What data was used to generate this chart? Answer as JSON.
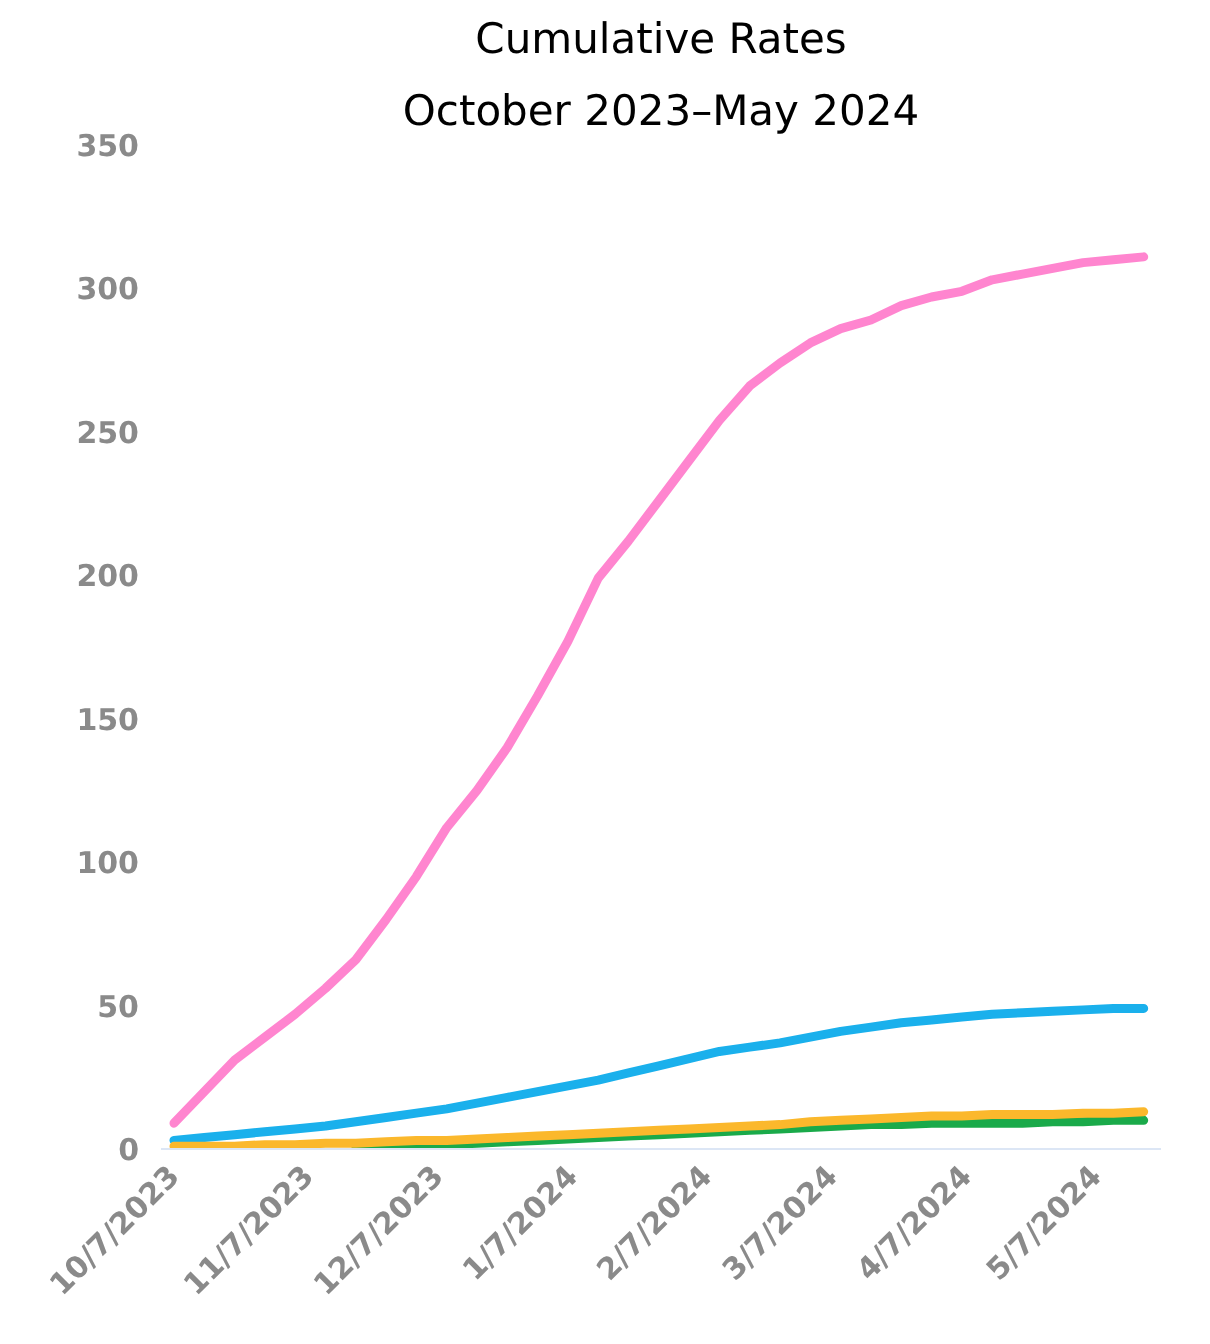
{
  "chart_data": {
    "type": "line",
    "title": "Cumulative Rates",
    "subtitle": "October 2023–May 2024",
    "x": [
      "2023-10-07",
      "2023-10-14",
      "2023-10-21",
      "2023-10-28",
      "2023-11-04",
      "2023-11-11",
      "2023-11-18",
      "2023-11-25",
      "2023-12-02",
      "2023-12-09",
      "2023-12-16",
      "2023-12-23",
      "2023-12-30",
      "2024-01-06",
      "2024-01-13",
      "2024-01-20",
      "2024-01-27",
      "2024-02-03",
      "2024-02-10",
      "2024-02-17",
      "2024-02-24",
      "2024-03-02",
      "2024-03-09",
      "2024-03-16",
      "2024-03-23",
      "2024-03-30",
      "2024-04-06",
      "2024-04-13",
      "2024-04-20",
      "2024-04-27",
      "2024-05-04",
      "2024-05-11",
      "2024-05-18"
    ],
    "series": [
      {
        "color": "#ff85cf",
        "values": [
          9,
          20,
          31,
          39,
          47,
          56,
          66,
          80,
          95,
          112,
          125,
          140,
          158,
          177,
          199,
          212,
          226,
          240,
          254,
          266,
          274,
          281,
          286,
          289,
          294,
          297,
          299,
          303,
          305,
          307,
          309,
          310,
          311
        ]
      },
      {
        "color": "#1ab0ec",
        "values": [
          3,
          4,
          5,
          6,
          7,
          8,
          9.5,
          11,
          12.5,
          14,
          16,
          18,
          20,
          22,
          24,
          26.5,
          29,
          31.5,
          34,
          35.5,
          37,
          39,
          41,
          42.5,
          44,
          45,
          46,
          47,
          47.5,
          48,
          48.5,
          49,
          49
        ]
      },
      {
        "color": "#1aaa4a",
        "values": [
          null,
          null,
          null,
          null,
          null,
          null,
          1,
          1,
          1.5,
          1.5,
          2,
          2.5,
          3,
          3.5,
          4,
          4.5,
          5,
          5.5,
          6,
          6.5,
          7,
          7.5,
          8,
          8.5,
          8.5,
          9,
          9,
          9,
          9,
          9.5,
          9.5,
          10,
          10
        ]
      },
      {
        "color": "#fbb82c",
        "values": [
          1,
          1,
          1,
          1.5,
          1.5,
          2,
          2,
          2.5,
          3,
          3,
          3.5,
          4,
          4.5,
          5,
          5.5,
          6,
          6.5,
          7,
          7.5,
          8,
          8.5,
          9.5,
          10,
          10.5,
          11,
          11.5,
          11.5,
          12,
          12,
          12,
          12.5,
          12.5,
          13
        ]
      }
    ],
    "xlim": [
      "2023-10-04",
      "2024-05-22"
    ],
    "xticks": [
      {
        "value": "2023-10-07",
        "label": "10/7/2023"
      },
      {
        "value": "2023-11-07",
        "label": "11/7/2023"
      },
      {
        "value": "2023-12-07",
        "label": "12/7/2023"
      },
      {
        "value": "2024-01-07",
        "label": "1/7/2024"
      },
      {
        "value": "2024-02-07",
        "label": "2/7/2024"
      },
      {
        "value": "2024-03-07",
        "label": "3/7/2024"
      },
      {
        "value": "2024-04-07",
        "label": "4/7/2024"
      },
      {
        "value": "2024-05-07",
        "label": "5/7/2024"
      }
    ],
    "ylim": [
      0,
      350
    ],
    "yticks": [
      0,
      50,
      100,
      150,
      200,
      250,
      300,
      350
    ],
    "grid": false,
    "marker": "none",
    "line_style": "solid"
  }
}
